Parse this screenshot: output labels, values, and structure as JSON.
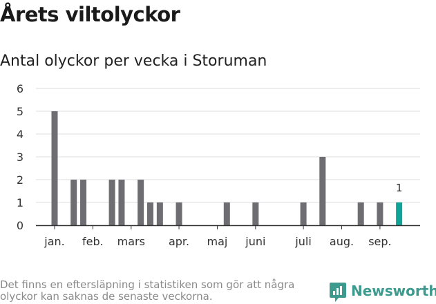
{
  "title": "Årets viltolyckor",
  "subtitle": "Antal olyckor per vecka i Storuman",
  "footnote": "Det finns en eftersläpning i statistiken som gör att några olyckor kan saknas de senaste veckorna.",
  "brand": "Newsworthy",
  "colors": {
    "bar": "#6d6d72",
    "highlight": "#12a398",
    "brand": "#3d9a8f",
    "grid": "#dddddd",
    "axis": "#333333"
  },
  "chart_data": {
    "type": "bar",
    "ylim": [
      0,
      6
    ],
    "yticks": [
      0,
      1,
      2,
      3,
      4,
      5,
      6
    ],
    "x_unit": "week",
    "weeks": [
      1,
      2,
      3,
      4,
      5,
      6,
      7,
      8,
      9,
      10,
      11,
      12,
      13,
      14,
      15,
      16,
      17,
      18,
      19,
      20,
      21,
      22,
      23,
      24,
      25,
      26,
      27,
      28,
      29,
      30,
      31,
      32,
      33,
      34,
      35,
      36,
      37,
      38
    ],
    "values": [
      5,
      0,
      2,
      2,
      0,
      0,
      2,
      2,
      0,
      2,
      1,
      1,
      0,
      1,
      0,
      0,
      0,
      0,
      1,
      0,
      0,
      1,
      0,
      0,
      0,
      0,
      1,
      0,
      3,
      0,
      0,
      0,
      1,
      0,
      1,
      0,
      1,
      0
    ],
    "highlight_week": 37,
    "highlight_label": "1",
    "month_labels": [
      {
        "label": "jan.",
        "week": 1
      },
      {
        "label": "feb.",
        "week": 5
      },
      {
        "label": "mars",
        "week": 9
      },
      {
        "label": "apr.",
        "week": 14
      },
      {
        "label": "maj",
        "week": 18
      },
      {
        "label": "juni",
        "week": 22
      },
      {
        "label": "juli",
        "week": 27
      },
      {
        "label": "aug.",
        "week": 31
      },
      {
        "label": "sep.",
        "week": 35
      }
    ]
  }
}
